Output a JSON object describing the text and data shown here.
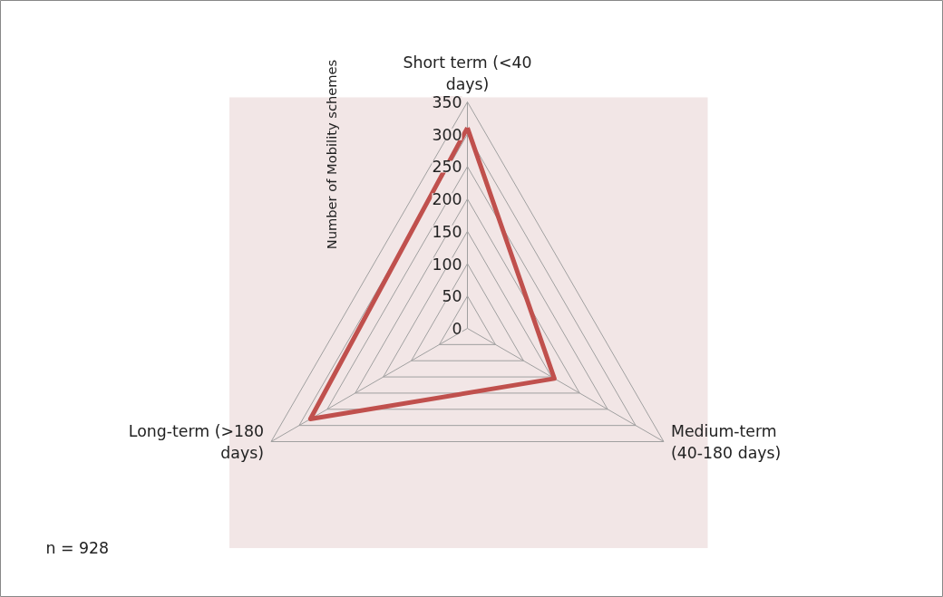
{
  "chart_data": {
    "type": "radar",
    "ylabel": "Number of Mobility schemes",
    "categories": [
      "Short term (<40 days)",
      "Medium-term (40-180 days)",
      "Long-term (>180 days)"
    ],
    "series": [
      {
        "color": "#c0504d",
        "values": [
          310,
          155,
          280
        ]
      }
    ],
    "ylim": [
      0,
      350
    ],
    "yticks": [
      0,
      50,
      100,
      150,
      200,
      250,
      300,
      350
    ],
    "grid": true,
    "annotations": [
      "n = 928"
    ]
  }
}
